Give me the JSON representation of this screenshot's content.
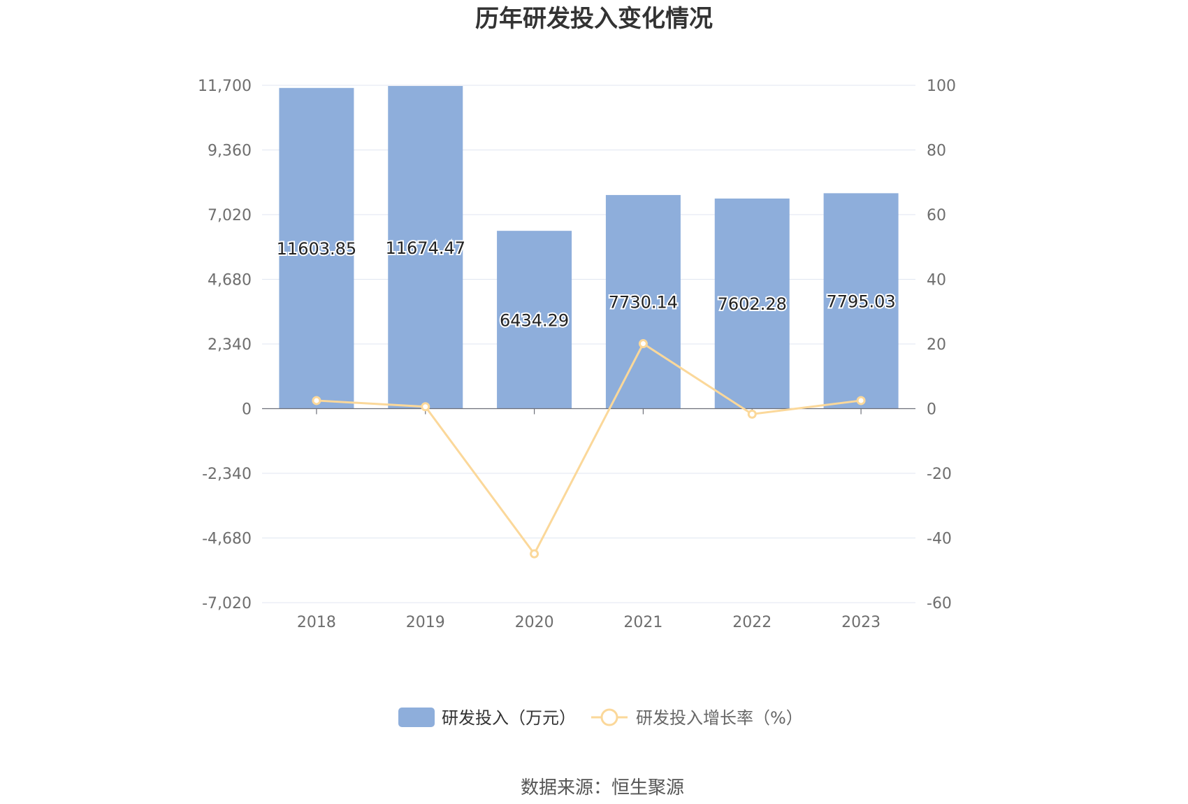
{
  "chart_data": {
    "type": "bar",
    "title": "历年研发投入变化情况",
    "categories": [
      "2018",
      "2019",
      "2020",
      "2021",
      "2022",
      "2023"
    ],
    "series": [
      {
        "name": "研发投入（万元）",
        "type": "bar",
        "axis": "left",
        "color": "#8eaedb",
        "values": [
          11603.85,
          11674.47,
          6434.29,
          7730.14,
          7602.28,
          7795.03
        ],
        "labels": [
          "11603.85",
          "11674.47",
          "6434.29",
          "7730.14",
          "7602.28",
          "7795.03"
        ]
      },
      {
        "name": "研发投入增长率（%）",
        "type": "line",
        "axis": "right",
        "color": "#fbd89a",
        "values": [
          2.5,
          0.6,
          -44.9,
          20.1,
          -1.7,
          2.5
        ]
      }
    ],
    "y_left": {
      "min": -7020,
      "max": 11700,
      "ticks": [
        -7020,
        -4680,
        -2340,
        0,
        2340,
        4680,
        7020,
        9360,
        11700
      ],
      "tick_labels": [
        "-7,020",
        "-4,680",
        "-2,340",
        "0",
        "2,340",
        "4,680",
        "7,020",
        "9,360",
        "11,700"
      ]
    },
    "y_right": {
      "min": -60,
      "max": 100,
      "ticks": [
        -60,
        -40,
        -20,
        0,
        20,
        40,
        60,
        80,
        100
      ],
      "tick_labels": [
        "-60",
        "-40",
        "-20",
        "0",
        "20",
        "40",
        "60",
        "80",
        "100"
      ]
    },
    "grid": true,
    "legend_position": "bottom",
    "source": "数据来源：恒生聚源"
  }
}
